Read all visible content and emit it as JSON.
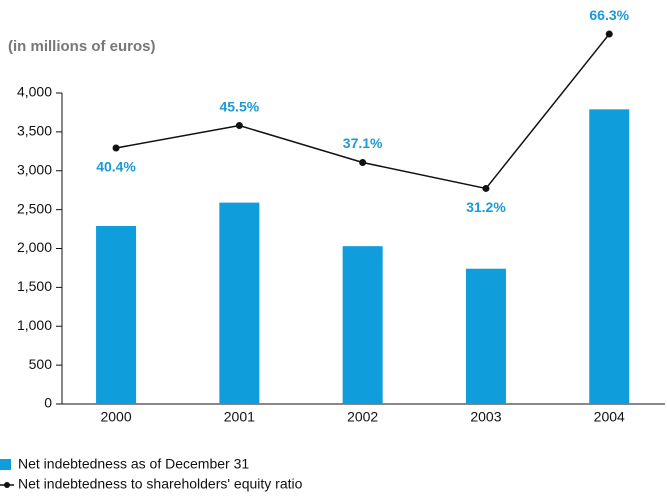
{
  "chart_data": {
    "type": "bar",
    "title": "(in millions of euros)",
    "categories": [
      "2000",
      "2001",
      "2002",
      "2003",
      "2004"
    ],
    "series": [
      {
        "name": "Net indebtedness as of December 31",
        "type": "bar",
        "color": "#0f9ddb",
        "values": [
          2290,
          2590,
          2030,
          1740,
          3790
        ]
      },
      {
        "name": "Net indebtedness to shareholders' equity ratio",
        "type": "line",
        "axis": "y2",
        "color": "#111111",
        "values": [
          40.4,
          45.5,
          37.1,
          31.2,
          66.3
        ],
        "value_labels": [
          "40.4%",
          "45.5%",
          "37.1%",
          "31.2%",
          "66.3%"
        ]
      }
    ],
    "ylim": [
      0,
      4000
    ],
    "yticks": [
      0,
      500,
      {
        "value": 1000,
        "label": "1,000"
      },
      {
        "value": 1500,
        "label": "1,500"
      },
      {
        "value": 2000,
        "label": "2,000"
      },
      {
        "value": 2500,
        "label": "2,500"
      },
      {
        "value": 3000,
        "label": "3,000"
      },
      {
        "value": 3500,
        "label": "3,500"
      },
      {
        "value": 4000,
        "label": "4,000"
      }
    ],
    "y2lim": [
      -17.8,
      52.9
    ]
  }
}
